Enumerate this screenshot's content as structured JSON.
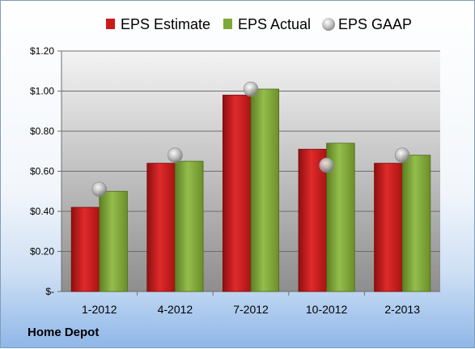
{
  "company": "Home Depot",
  "colors": {
    "estimate": "#cc1a1a",
    "actual": "#7fa83a",
    "gaap": "#b0b0b0",
    "plot_top": "#f4f4f4",
    "plot_bottom": "#8e8e8e"
  },
  "chart_data": {
    "type": "bar",
    "categories": [
      "1-2012",
      "4-2012",
      "7-2012",
      "10-2012",
      "2-2013"
    ],
    "series": [
      {
        "name": "EPS Estimate",
        "kind": "bar",
        "values": [
          0.42,
          0.64,
          0.98,
          0.71,
          0.64
        ]
      },
      {
        "name": "EPS Actual",
        "kind": "bar",
        "values": [
          0.5,
          0.65,
          1.01,
          0.74,
          0.68
        ]
      },
      {
        "name": "EPS GAAP",
        "kind": "marker",
        "values": [
          0.51,
          0.68,
          1.01,
          0.63,
          0.68
        ]
      }
    ],
    "ylim": [
      0,
      1.2
    ],
    "yticks": [
      0,
      0.2,
      0.4,
      0.6,
      0.8,
      1.0,
      1.2
    ],
    "ytick_labels": [
      "$-",
      "$0.20",
      "$0.40",
      "$0.60",
      "$0.80",
      "$1.00",
      "$1.20"
    ],
    "grid": true,
    "legend": "top"
  }
}
